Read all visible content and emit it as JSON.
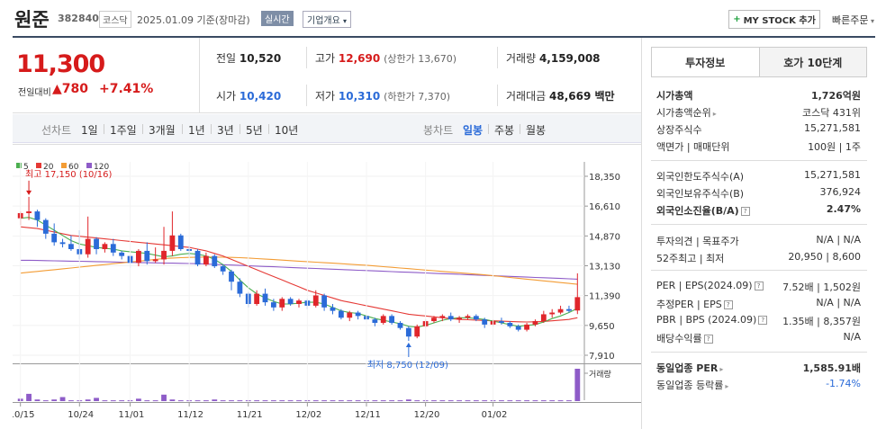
{
  "header": {
    "name": "원준",
    "code": "382840",
    "market": "코스닥",
    "date_basis": "2025.01.09 기준(장마감)",
    "realtime": "실시간",
    "company_info": "기업개요",
    "mystock_label": "MY STOCK 추가",
    "quick_order": "빠른주문"
  },
  "price": {
    "current": "11,300",
    "change_label": "전일대비",
    "change_value": "780",
    "change_pct": "+7.41%",
    "color_up": "#d61b1b"
  },
  "stats": {
    "prev_label": "전일",
    "prev": "10,520",
    "high_label": "고가",
    "high": "12,690",
    "upper_limit": "(상한가 13,670)",
    "volume_label": "거래량",
    "volume": "4,159,008",
    "open_label": "시가",
    "open": "10,420",
    "low_label": "저가",
    "low": "10,310",
    "lower_limit": "(하한가 7,370)",
    "amount_label": "거래대금",
    "amount": "48,669 백만"
  },
  "periods": {
    "line_label": "선차트",
    "line_items": [
      "1일",
      "1주일",
      "3개월",
      "1년",
      "3년",
      "5년",
      "10년"
    ],
    "candle_label": "봉차트",
    "candle_items": [
      "일봉",
      "주봉",
      "월봉"
    ],
    "selected_candle": "일봉"
  },
  "chart_data": {
    "type": "candlestick",
    "legend": [
      {
        "name": "5",
        "color": "#4caf50"
      },
      {
        "name": "20",
        "color": "#e53935"
      },
      {
        "name": "60",
        "color": "#f39c34"
      },
      {
        "name": "120",
        "color": "#8e5cc8"
      }
    ],
    "y_ticks": [
      "18,350",
      "16,610",
      "14,870",
      "13,130",
      "11,390",
      "9,650",
      "7,910"
    ],
    "ylim": [
      7910,
      18350
    ],
    "x_ticks": [
      "10/15",
      "10/24",
      "11/01",
      "11/12",
      "11/21",
      "12/02",
      "12/11",
      "12/20",
      "01/02"
    ],
    "max_label": "최고 17,150 (10/16)",
    "min_label": "최저 8,750 (12/09)",
    "volume_label": "거래량",
    "candles": [
      [
        15900,
        16300,
        15500,
        16200
      ],
      [
        16200,
        17150,
        15800,
        16300
      ],
      [
        16300,
        16400,
        15400,
        15800
      ],
      [
        15800,
        15900,
        14700,
        15000
      ],
      [
        15000,
        15600,
        14300,
        14500
      ],
      [
        14500,
        14700,
        14200,
        14400
      ],
      [
        14400,
        14900,
        14000,
        14100
      ],
      [
        14100,
        15200,
        13500,
        13800
      ],
      [
        13800,
        16000,
        13600,
        14700
      ],
      [
        14700,
        14800,
        13800,
        14100
      ],
      [
        14100,
        14500,
        13900,
        14400
      ],
      [
        14400,
        14700,
        13700,
        13900
      ],
      [
        13900,
        14000,
        13500,
        13700
      ],
      [
        13700,
        13800,
        13000,
        13300
      ],
      [
        13300,
        14100,
        13100,
        14000
      ],
      [
        14000,
        14500,
        13200,
        13400
      ],
      [
        13400,
        14200,
        13300,
        13500
      ],
      [
        13500,
        15400,
        13200,
        14000
      ],
      [
        14000,
        16300,
        13700,
        14900
      ],
      [
        14900,
        15000,
        14000,
        14100
      ],
      [
        14100,
        14300,
        13700,
        14000
      ],
      [
        14000,
        14100,
        13100,
        13200
      ],
      [
        13200,
        13900,
        13100,
        13700
      ],
      [
        13700,
        13800,
        13000,
        13100
      ],
      [
        13100,
        13200,
        12600,
        12800
      ],
      [
        12800,
        12900,
        11700,
        12200
      ],
      [
        12200,
        12400,
        11300,
        11500
      ],
      [
        11500,
        11600,
        10700,
        10900
      ],
      [
        10900,
        11700,
        10800,
        11500
      ],
      [
        11500,
        11800,
        10800,
        11000
      ],
      [
        11000,
        11200,
        10500,
        10700
      ],
      [
        10700,
        11300,
        10500,
        11200
      ],
      [
        11200,
        11300,
        10800,
        10900
      ],
      [
        10900,
        11200,
        10700,
        11100
      ],
      [
        11100,
        11200,
        10600,
        10800
      ],
      [
        10800,
        11700,
        10700,
        11400
      ],
      [
        11400,
        11500,
        10500,
        10700
      ],
      [
        10700,
        10900,
        10300,
        10500
      ],
      [
        10500,
        10600,
        10000,
        10100
      ],
      [
        10100,
        10500,
        9900,
        10400
      ],
      [
        10400,
        10500,
        10000,
        10200
      ],
      [
        10200,
        10300,
        9800,
        10000
      ],
      [
        10000,
        10100,
        9600,
        9800
      ],
      [
        9800,
        10300,
        9700,
        10200
      ],
      [
        10200,
        10300,
        9700,
        9800
      ],
      [
        9800,
        9900,
        9400,
        9500
      ],
      [
        9500,
        9600,
        8750,
        9000
      ],
      [
        9000,
        9700,
        8900,
        9600
      ],
      [
        9600,
        10000,
        9500,
        9900
      ],
      [
        9900,
        10200,
        9800,
        10100
      ],
      [
        10100,
        10300,
        9900,
        10200
      ],
      [
        10200,
        10400,
        9900,
        10000
      ],
      [
        10000,
        10200,
        9800,
        10100
      ],
      [
        10100,
        10300,
        10000,
        10200
      ],
      [
        10200,
        10300,
        9900,
        10000
      ],
      [
        10000,
        10100,
        9500,
        9700
      ],
      [
        9700,
        10000,
        9600,
        9900
      ],
      [
        9900,
        10100,
        9700,
        9800
      ],
      [
        9800,
        9900,
        9500,
        9600
      ],
      [
        9600,
        9700,
        9300,
        9400
      ],
      [
        9400,
        9800,
        9300,
        9700
      ],
      [
        9700,
        10000,
        9600,
        9900
      ],
      [
        9900,
        10500,
        9800,
        10300
      ],
      [
        10300,
        10600,
        10100,
        10400
      ],
      [
        10400,
        10800,
        10300,
        10600
      ],
      [
        10600,
        10800,
        10400,
        10500
      ],
      [
        10520,
        12690,
        10310,
        11300
      ]
    ],
    "volumes": [
      3,
      9,
      2,
      1,
      2,
      5,
      1,
      1,
      2,
      4,
      1,
      1,
      1,
      1,
      3,
      1,
      1,
      8,
      2,
      1,
      1,
      1,
      1,
      2,
      1,
      1,
      1,
      1,
      1,
      1,
      1,
      1,
      1,
      1,
      1,
      1,
      1,
      1,
      1,
      1,
      1,
      1,
      1,
      1,
      1,
      1,
      2,
      1,
      1,
      1,
      1,
      1,
      1,
      1,
      1,
      1,
      1,
      1,
      1,
      1,
      1,
      1,
      1,
      1,
      1,
      1,
      40
    ],
    "ma5": [
      15900,
      15950,
      15800,
      15500,
      15200,
      14900,
      14600,
      14400,
      14300,
      14200,
      14150,
      14100,
      14000,
      13950,
      13900,
      13850,
      13750,
      13650,
      13700,
      13800,
      13850,
      13800,
      13700,
      13500,
      13200,
      12800,
      12300,
      11850,
      11500,
      11250,
      11050,
      10900,
      10900,
      10950,
      11000,
      11000,
      10900,
      10700,
      10500,
      10400,
      10350,
      10200,
      10050,
      9950,
      9850,
      9750,
      9600,
      9550,
      9650,
      9800,
      9950,
      10050,
      10100,
      10100,
      10050,
      10000,
      9900,
      9800,
      9700,
      9600,
      9650,
      9700,
      9850,
      10050,
      10200,
      10400,
      10650
    ],
    "ma20": [
      15400,
      15350,
      15300,
      15200,
      15100,
      15000,
      14900,
      14850,
      14800,
      14750,
      14700,
      14650,
      14600,
      14550,
      14500,
      14450,
      14400,
      14350,
      14300,
      14250,
      14200,
      14100,
      14000,
      13850,
      13700,
      13500,
      13300,
      13100,
      12900,
      12700,
      12500,
      12300,
      12100,
      11900,
      11700,
      11550,
      11400,
      11250,
      11100,
      11000,
      10900,
      10800,
      10700,
      10600,
      10500,
      10400,
      10300,
      10250,
      10200,
      10150,
      10100,
      10050,
      10000,
      9980,
      9960,
      9940,
      9920,
      9900,
      9880,
      9860,
      9850,
      9860,
      9880,
      9920,
      9960,
      10000,
      10100
    ],
    "ma60": [
      12700,
      12750,
      12800,
      12850,
      12900,
      12950,
      13000,
      13050,
      13100,
      13150,
      13200,
      13250,
      13300,
      13350,
      13400,
      13450,
      13500,
      13550,
      13580,
      13600,
      13620,
      13630,
      13640,
      13640,
      13630,
      13620,
      13600,
      13580,
      13550,
      13520,
      13490,
      13460,
      13430,
      13400,
      13370,
      13340,
      13310,
      13280,
      13250,
      13220,
      13190,
      13160,
      13120,
      13080,
      13040,
      13000,
      12960,
      12920,
      12880,
      12840,
      12800,
      12760,
      12720,
      12680,
      12640,
      12600,
      12550,
      12500,
      12450,
      12400,
      12350,
      12300,
      12250,
      12200,
      12150,
      12100,
      12050
    ],
    "ma120": [
      13450,
      13450,
      13440,
      13430,
      13420,
      13410,
      13400,
      13390,
      13380,
      13370,
      13360,
      13350,
      13340,
      13330,
      13320,
      13310,
      13300,
      13290,
      13280,
      13270,
      13260,
      13250,
      13230,
      13210,
      13190,
      13170,
      13150,
      13130,
      13110,
      13090,
      13070,
      13050,
      13030,
      13010,
      12990,
      12970,
      12950,
      12930,
      12910,
      12890,
      12870,
      12850,
      12830,
      12810,
      12790,
      12770,
      12750,
      12730,
      12710,
      12690,
      12670,
      12650,
      12630,
      12610,
      12590,
      12570,
      12550,
      12530,
      12510,
      12490,
      12470,
      12450,
      12430,
      12410,
      12390,
      12370,
      12350
    ]
  },
  "invest": {
    "tab_invest": "투자정보",
    "tab_order": "호가 10단계",
    "market_cap_label": "시가총액",
    "market_cap": "1,726억원",
    "cap_rank_label": "시가총액순위",
    "cap_rank": "코스닥 431위",
    "shares_label": "상장주식수",
    "shares": "15,271,581",
    "par_label": "액면가 | 매매단위",
    "par": "100원 | 1주",
    "foreign_limit_label": "외국인한도주식수(A)",
    "foreign_limit": "15,271,581",
    "foreign_hold_label": "외국인보유주식수(B)",
    "foreign_hold": "376,924",
    "foreign_ratio_label": "외국인소진율(B/A)",
    "foreign_ratio": "2.47%",
    "opinion_label": "투자의견 | 목표주가",
    "opinion": "N/A | N/A",
    "week52_label": "52주최고 | 최저",
    "week52": "20,950 | 8,600",
    "per_label": "PER | EPS(2024.09)",
    "per": "7.52배 | 1,502원",
    "est_per_label": "추정PER | EPS",
    "est_per": "N/A | N/A",
    "pbr_label": "PBR | BPS (2024.09)",
    "pbr": "1.35배 | 8,357원",
    "div_label": "배당수익률",
    "div": "N/A",
    "ind_per_label": "동일업종 PER",
    "ind_per": "1,585.91배",
    "ind_rate_label": "동일업종 등락률",
    "ind_rate": "-1.74%"
  }
}
